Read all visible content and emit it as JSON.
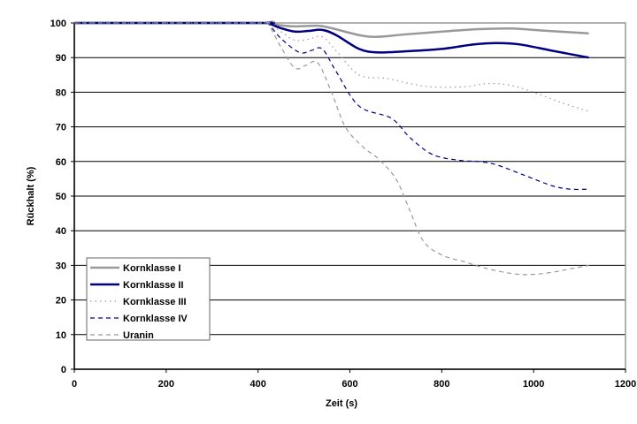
{
  "chart_data": {
    "type": "line",
    "title": "",
    "xlabel": "Zeit (s)",
    "ylabel": "Rückhalt (%)",
    "xlim": [
      0,
      1200
    ],
    "ylim": [
      0,
      100
    ],
    "xticks": [
      0,
      200,
      400,
      600,
      800,
      1000,
      1200
    ],
    "yticks": [
      0,
      10,
      20,
      30,
      40,
      50,
      60,
      70,
      80,
      90,
      100
    ],
    "grid": "horizontal",
    "legend_position": "bottom-left",
    "series": [
      {
        "name": "Kornklasse I",
        "color": "#999999",
        "style": "solid",
        "width": 2.5,
        "x": [
          0,
          400,
          420,
          450,
          480,
          530,
          560,
          620,
          660,
          720,
          800,
          880,
          950,
          1020,
          1120
        ],
        "y": [
          100,
          100,
          100,
          99.3,
          99,
          99.2,
          98.5,
          96.5,
          96,
          96.7,
          97.5,
          98.2,
          98.4,
          97.8,
          97
        ]
      },
      {
        "name": "Kornklasse II",
        "color": "#000080",
        "style": "solid",
        "width": 2.5,
        "x": [
          0,
          400,
          420,
          450,
          480,
          510,
          540,
          570,
          620,
          660,
          720,
          800,
          870,
          920,
          970,
          1040,
          1120
        ],
        "y": [
          100,
          100,
          100,
          98.5,
          97.5,
          97.7,
          98,
          96.5,
          92.5,
          91.5,
          91.8,
          92.5,
          93.8,
          94.2,
          93.8,
          92,
          90
        ]
      },
      {
        "name": "Kornklasse III",
        "color": "#999999",
        "style": "dotted",
        "width": 1.2,
        "x": [
          0,
          400,
          420,
          450,
          480,
          510,
          540,
          570,
          620,
          680,
          730,
          780,
          850,
          900,
          950,
          1000,
          1060,
          1120
        ],
        "y": [
          100,
          100,
          100,
          97.5,
          95,
          95.3,
          96,
          92,
          85,
          84,
          82.5,
          81.5,
          81.6,
          82.5,
          82,
          80,
          77,
          74.5
        ]
      },
      {
        "name": "Kornklasse IV",
        "color": "#000080",
        "style": "dashed",
        "width": 1.2,
        "x": [
          0,
          400,
          420,
          450,
          490,
          515,
          540,
          570,
          620,
          690,
          730,
          780,
          840,
          880,
          920,
          980,
          1040,
          1080,
          1120
        ],
        "y": [
          100,
          100,
          100,
          95.5,
          91.5,
          92,
          92.5,
          86,
          76,
          72.5,
          67,
          62,
          60.3,
          60,
          59,
          56,
          53,
          52,
          52
        ]
      },
      {
        "name": "Uranin",
        "color": "#999999",
        "style": "dashed",
        "width": 1.2,
        "x": [
          0,
          400,
          420,
          450,
          480,
          505,
          530,
          560,
          590,
          630,
          660,
          700,
          730,
          760,
          800,
          850,
          900,
          960,
          1000,
          1040,
          1080,
          1120
        ],
        "y": [
          100,
          100,
          100,
          93,
          87,
          87.8,
          88.5,
          80,
          70,
          64,
          61,
          55,
          46,
          37,
          33,
          31,
          29,
          27.5,
          27.4,
          28,
          29,
          30
        ]
      }
    ]
  }
}
